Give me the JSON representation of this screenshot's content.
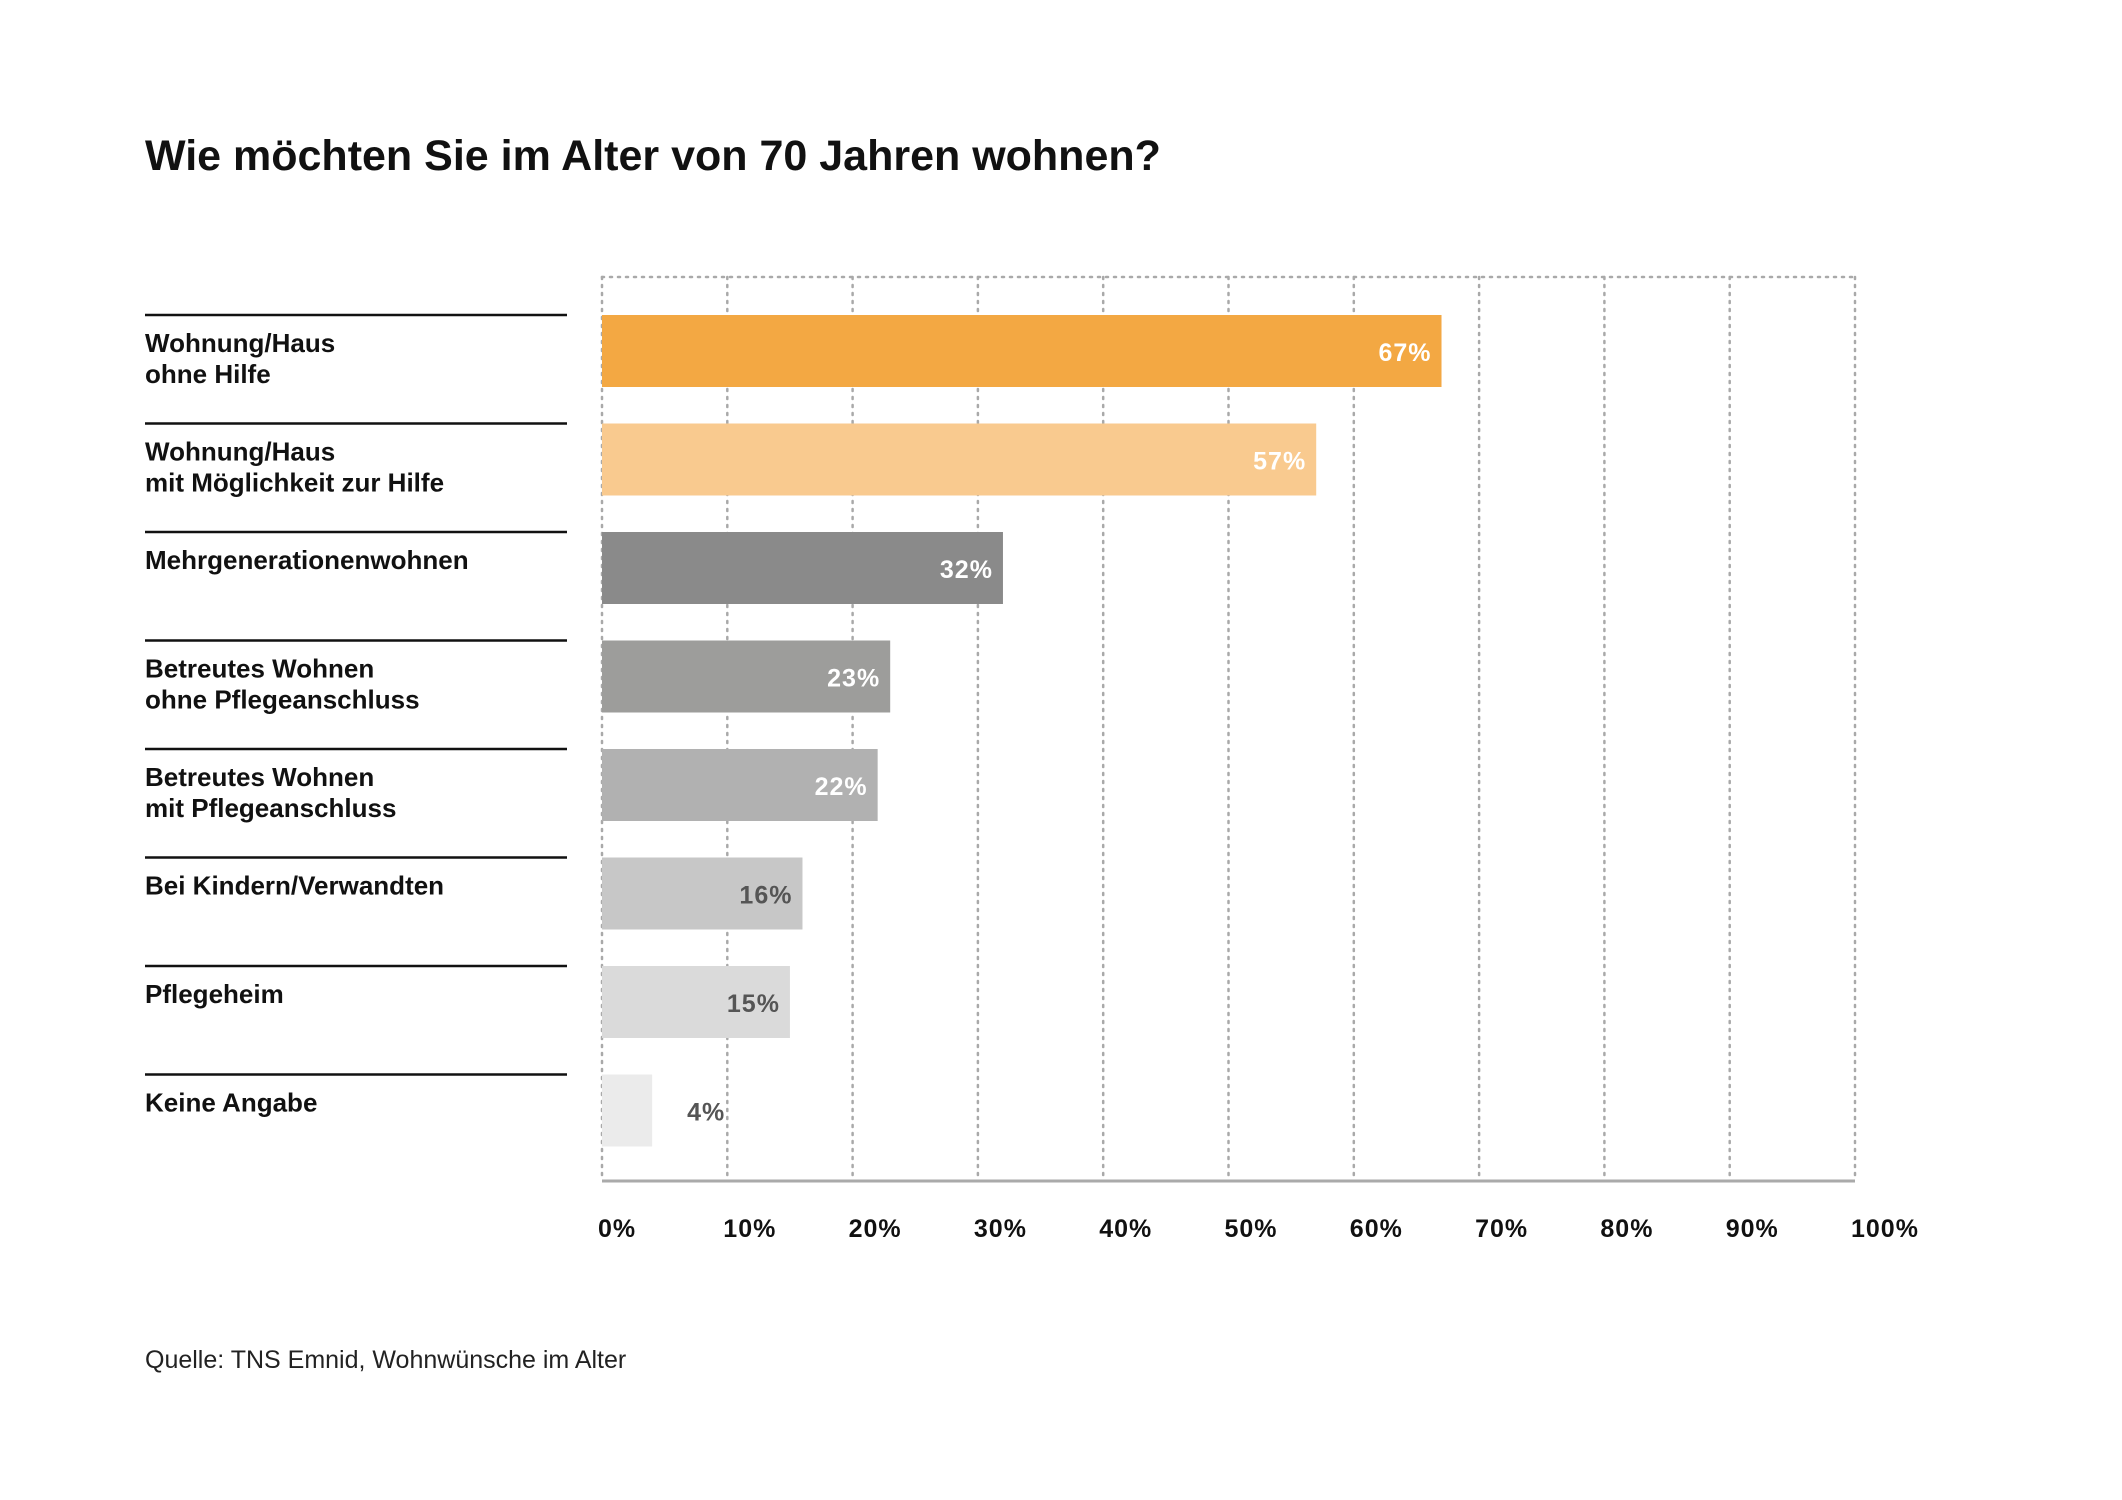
{
  "title": "Wie möchten Sie im Alter von 70 Jahren wohnen?",
  "source": "Quelle: TNS Emnid, Wohnwünsche im Alter",
  "chart_data": {
    "type": "bar",
    "orientation": "horizontal",
    "title": "Wie möchten Sie im Alter von 70 Jahren wohnen?",
    "categories": [
      [
        "Wohnung/Haus",
        "ohne Hilfe"
      ],
      [
        "Wohnung/Haus",
        "mit Möglichkeit zur Hilfe"
      ],
      [
        "Mehrgenerationenwohnen"
      ],
      [
        "Betreutes Wohnen",
        "ohne Pflegeanschluss"
      ],
      [
        "Betreutes Wohnen",
        "mit Pflegeanschluss"
      ],
      [
        "Bei Kindern/Verwandten"
      ],
      [
        "Pflegeheim"
      ],
      [
        "Keine Angabe"
      ]
    ],
    "values": [
      67,
      57,
      32,
      23,
      22,
      16,
      15,
      4
    ],
    "value_labels": [
      "67%",
      "57%",
      "32%",
      "23%",
      "22%",
      "16%",
      "15%",
      "4%"
    ],
    "bar_colors": [
      "#f3a843",
      "#f9ca8f",
      "#8a8a8a",
      "#9d9d9b",
      "#b1b1b1",
      "#c7c7c7",
      "#dadada",
      "#ebebeb"
    ],
    "label_colors": [
      "#ffffff",
      "#ffffff",
      "#ffffff",
      "#ffffff",
      "#ffffff",
      "#555555",
      "#555555",
      "#555555"
    ],
    "xlim": [
      0,
      100
    ],
    "xticks": [
      "0%",
      "10%",
      "20%",
      "30%",
      "40%",
      "50%",
      "60%",
      "70%",
      "80%",
      "90%",
      "100%"
    ],
    "grid": "dotted vertical",
    "legend": "none"
  }
}
